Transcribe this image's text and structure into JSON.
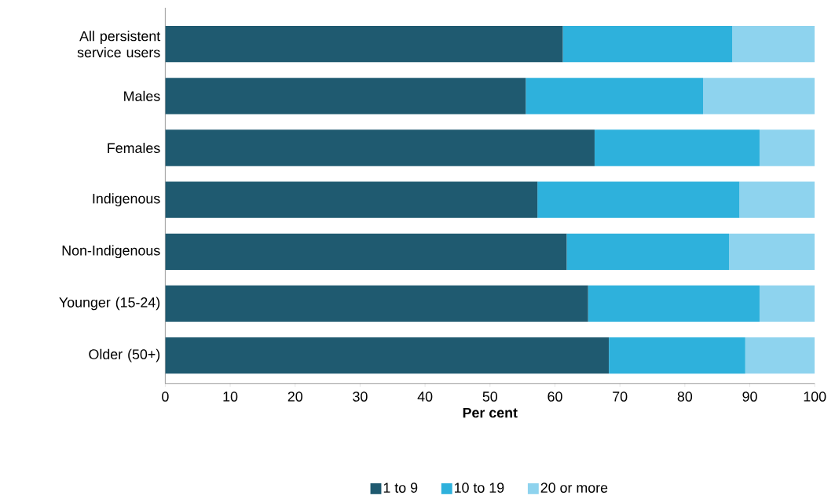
{
  "chart_data": {
    "type": "bar",
    "orientation": "horizontal",
    "stacked": true,
    "categories": [
      "All persistent service users",
      "Males",
      "Females",
      "Indigenous",
      "Non-Indigenous",
      "Younger (15-24)",
      "Older (50+)"
    ],
    "series": [
      {
        "name": "1 to 9",
        "color": "#1f5a70",
        "values": [
          61.2,
          55.5,
          66.1,
          57.3,
          61.8,
          65.1,
          68.3
        ]
      },
      {
        "name": "10 to 19",
        "color": "#2eb1dc",
        "values": [
          26.1,
          27.3,
          25.4,
          31.1,
          25.0,
          26.4,
          21.0
        ]
      },
      {
        "name": "20 or more",
        "color": "#8ed3ee",
        "values": [
          12.7,
          17.2,
          8.5,
          11.6,
          13.2,
          8.5,
          10.7
        ]
      }
    ],
    "xlabel": "Per cent",
    "xlim": [
      0,
      100
    ],
    "xticks": [
      0,
      10,
      20,
      30,
      40,
      50,
      60,
      70,
      80,
      90,
      100
    ],
    "legend": "bottom"
  }
}
